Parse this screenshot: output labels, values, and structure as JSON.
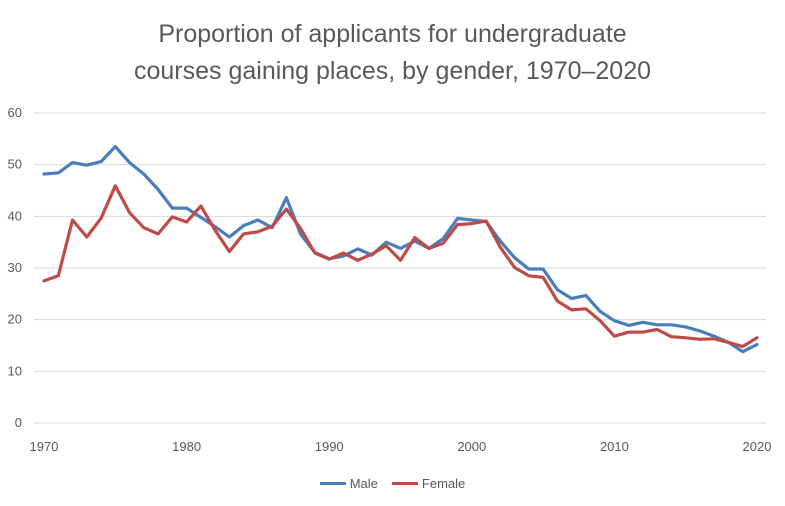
{
  "chart_data": {
    "type": "line",
    "title_line1": "Proportion of applicants for undergraduate",
    "title_line2": "courses gaining places, by gender, 1970–2020",
    "xlabel": "",
    "ylabel": "",
    "xlim": [
      1970,
      2020
    ],
    "ylim": [
      0,
      60
    ],
    "x_ticks": [
      "1970",
      "1980",
      "1990",
      "2000",
      "2010",
      "2020"
    ],
    "y_ticks": [
      "0",
      "10",
      "20",
      "30",
      "40",
      "50",
      "60"
    ],
    "grid": "horizontal",
    "legend_position": "bottom",
    "x": [
      1970,
      1971,
      1972,
      1973,
      1974,
      1975,
      1976,
      1977,
      1978,
      1979,
      1980,
      1981,
      1982,
      1983,
      1984,
      1985,
      1986,
      1987,
      1988,
      1989,
      1990,
      1991,
      1992,
      1993,
      1994,
      1995,
      1996,
      1997,
      1998,
      1999,
      2000,
      2001,
      2002,
      2003,
      2004,
      2005,
      2006,
      2007,
      2008,
      2009,
      2010,
      2011,
      2012,
      2013,
      2014,
      2015,
      2016,
      2017,
      2018,
      2019,
      2020
    ],
    "series": [
      {
        "name": "Male",
        "color": "#4a7ebb",
        "values": [
          48.2,
          48.4,
          50.4,
          49.9,
          50.6,
          53.5,
          50.4,
          48.2,
          45.2,
          41.6,
          41.6,
          39.8,
          38.0,
          36.0,
          38.2,
          39.3,
          37.8,
          43.6,
          36.5,
          33.0,
          31.8,
          32.3,
          33.7,
          32.5,
          35.0,
          33.8,
          35.2,
          33.8,
          35.7,
          39.6,
          39.3,
          39.0,
          35.2,
          32.0,
          29.8,
          29.8,
          25.8,
          24.1,
          24.7,
          21.6,
          19.8,
          18.9,
          19.5,
          19.0,
          19.0,
          18.6,
          17.8,
          16.8,
          15.6,
          13.8,
          15.2
        ]
      },
      {
        "name": "Female",
        "color": "#be4b48",
        "values": [
          27.5,
          28.5,
          39.3,
          36.0,
          39.6,
          45.9,
          40.7,
          37.8,
          36.6,
          39.9,
          38.9,
          42.0,
          37.3,
          33.2,
          36.6,
          37.0,
          38.1,
          41.4,
          37.6,
          32.9,
          31.7,
          32.9,
          31.5,
          32.7,
          34.3,
          31.5,
          35.9,
          33.8,
          34.8,
          38.4,
          38.6,
          39.1,
          34.0,
          30.1,
          28.5,
          28.2,
          23.6,
          21.9,
          22.1,
          19.8,
          16.8,
          17.6,
          17.6,
          18.1,
          16.7,
          16.5,
          16.2,
          16.3,
          15.6,
          14.8,
          16.5
        ]
      }
    ]
  }
}
